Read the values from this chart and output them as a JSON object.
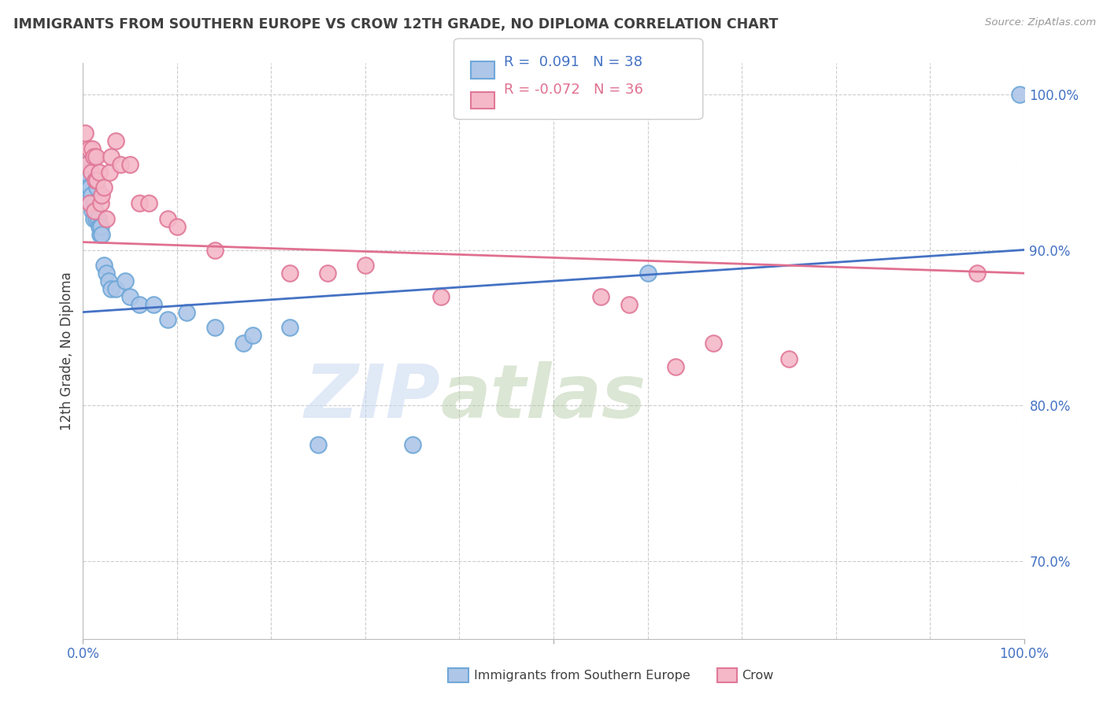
{
  "title": "IMMIGRANTS FROM SOUTHERN EUROPE VS CROW 12TH GRADE, NO DIPLOMA CORRELATION CHART",
  "source": "Source: ZipAtlas.com",
  "ylabel": "12th Grade, No Diploma",
  "right_yticks": [
    70.0,
    80.0,
    90.0,
    100.0
  ],
  "legend_blue_label": "Immigrants from Southern Europe",
  "legend_pink_label": "Crow",
  "watermark_zip": "ZIP",
  "watermark_atlas": "atlas",
  "blue_color": "#aec6e8",
  "blue_edge": "#6fa8d8",
  "pink_color": "#f4b8c8",
  "pink_edge": "#e07898",
  "blue_line_color": "#4472c4",
  "pink_line_color": "#e07090",
  "blue_scatter_x": [
    0.2,
    0.3,
    0.4,
    0.5,
    0.6,
    0.7,
    0.8,
    0.9,
    1.0,
    1.1,
    1.2,
    1.3,
    1.4,
    1.5,
    1.6,
    1.7,
    1.8,
    1.9,
    2.0,
    2.2,
    2.5,
    2.7,
    3.0,
    3.5,
    4.5,
    5.0,
    6.0,
    7.5,
    9.0,
    11.0,
    14.0,
    17.0,
    18.0,
    22.0,
    25.0,
    35.0,
    60.0,
    99.5
  ],
  "blue_scatter_y": [
    95.5,
    95.0,
    94.5,
    94.0,
    93.5,
    94.0,
    93.0,
    93.5,
    92.5,
    92.0,
    93.0,
    92.5,
    92.0,
    94.0,
    92.0,
    91.5,
    91.0,
    91.5,
    91.0,
    89.0,
    88.5,
    88.0,
    87.5,
    87.5,
    88.0,
    87.0,
    86.5,
    86.5,
    85.5,
    86.0,
    85.0,
    84.0,
    84.5,
    85.0,
    77.5,
    77.5,
    88.5,
    100.0
  ],
  "pink_scatter_x": [
    0.2,
    0.4,
    0.6,
    0.7,
    0.9,
    1.0,
    1.1,
    1.2,
    1.3,
    1.4,
    1.5,
    1.7,
    1.9,
    2.0,
    2.2,
    2.5,
    2.8,
    3.0,
    3.5,
    4.0,
    5.0,
    6.0,
    7.0,
    9.0,
    10.0,
    14.0,
    22.0,
    26.0,
    30.0,
    38.0,
    55.0,
    58.0,
    63.0,
    67.0,
    75.0,
    95.0
  ],
  "pink_scatter_y": [
    97.5,
    95.5,
    96.5,
    93.0,
    95.0,
    96.5,
    96.0,
    92.5,
    94.5,
    96.0,
    94.5,
    95.0,
    93.0,
    93.5,
    94.0,
    92.0,
    95.0,
    96.0,
    97.0,
    95.5,
    95.5,
    93.0,
    93.0,
    92.0,
    91.5,
    90.0,
    88.5,
    88.5,
    89.0,
    87.0,
    87.0,
    86.5,
    82.5,
    84.0,
    83.0,
    88.5
  ],
  "blue_trend_start": 86.0,
  "blue_trend_end": 90.0,
  "pink_trend_start": 90.5,
  "pink_trend_end": 88.5,
  "xlim": [
    0,
    100
  ],
  "ylim": [
    65,
    102
  ],
  "grid_color": "#cccccc",
  "background_color": "#ffffff",
  "title_color": "#404040",
  "axis_color": "#4472c4"
}
